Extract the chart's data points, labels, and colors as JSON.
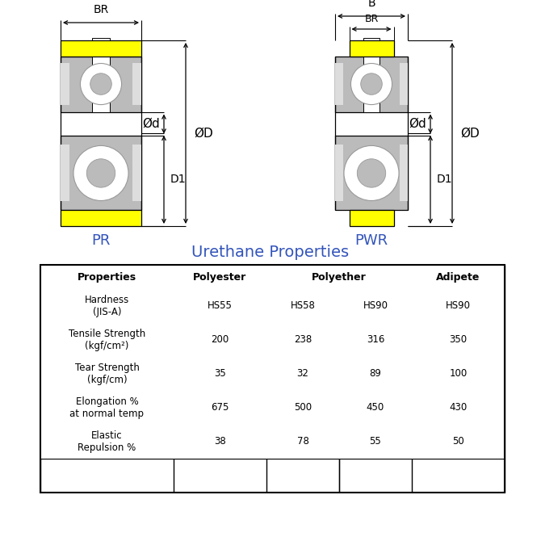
{
  "title_table": "Urethane Properties",
  "col_headers": [
    "Properties",
    "Polyester",
    "Polyether",
    "Adipete"
  ],
  "hardness_row": [
    "Hardness\n(JIS-A)",
    "HS55",
    "HS58",
    "HS90",
    "HS90"
  ],
  "data_rows": [
    [
      "Tensile Strength\n(kgf/cm²)",
      "200",
      "238",
      "316",
      "350"
    ],
    [
      "Tear Strength\n(kgf/cm)",
      "35",
      "32",
      "89",
      "100"
    ],
    [
      "Elongation %\nat normal temp",
      "675",
      "500",
      "450",
      "430"
    ],
    [
      "Elastic\nRepulsion %",
      "38",
      "78",
      "55",
      "50"
    ]
  ],
  "label_PR": "PR",
  "label_PWR": "PWR",
  "color_yellow": "#FFFF00",
  "color_gray": "#BBBBBB",
  "color_dark_gray": "#999999",
  "color_light_gray": "#DDDDDD",
  "color_blue": "#3355BB",
  "color_white": "#FFFFFF",
  "color_black": "#000000",
  "bg_color": "#FFFFFF"
}
